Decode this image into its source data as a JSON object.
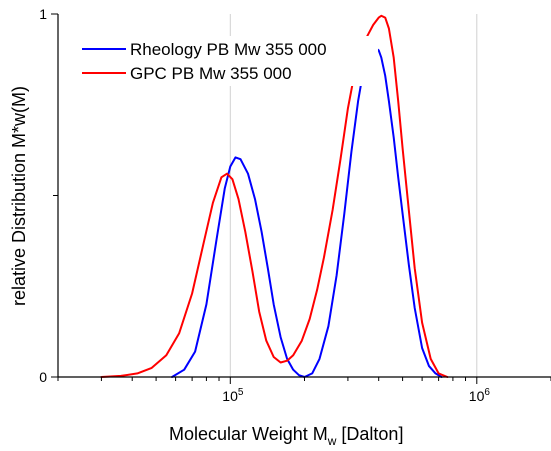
{
  "chart_data": {
    "type": "line",
    "xlabel": "Molecular Weight M",
    "xlabel_sub": "w",
    "xlabel_unit": " [Dalton]",
    "ylabel": "relative Distribution M*w(M)",
    "x_scale": "log",
    "xlim": [
      20000,
      2000000
    ],
    "ylim": [
      0,
      1
    ],
    "grid": "vertical",
    "legend_position": "top-left",
    "x_ticks": [
      {
        "value": 100000,
        "base": "10",
        "exp": "5"
      },
      {
        "value": 1000000,
        "base": "10",
        "exp": "6"
      }
    ],
    "y_ticks": [
      {
        "value": 0,
        "label": "0"
      },
      {
        "value": 1,
        "label": "1"
      }
    ],
    "series": [
      {
        "name": "Rheology PB Mw 355 000",
        "color": "#0000ff",
        "x": [
          58000,
          65000,
          72000,
          80000,
          88000,
          95000,
          100000,
          105000,
          110000,
          118000,
          126000,
          134000,
          142000,
          150000,
          160000,
          170000,
          180000,
          190000,
          200000,
          215000,
          230000,
          250000,
          270000,
          290000,
          310000,
          330000,
          350000,
          370000,
          390000,
          400000,
          410000,
          425000,
          440000,
          460000,
          480000,
          500000,
          530000,
          560000,
          600000,
          640000,
          680000,
          720000
        ],
        "y": [
          0.0,
          0.02,
          0.07,
          0.2,
          0.38,
          0.52,
          0.58,
          0.605,
          0.6,
          0.56,
          0.49,
          0.4,
          0.3,
          0.2,
          0.11,
          0.05,
          0.02,
          0.005,
          0.0,
          0.01,
          0.05,
          0.14,
          0.28,
          0.45,
          0.62,
          0.76,
          0.86,
          0.91,
          0.905,
          0.9,
          0.88,
          0.83,
          0.76,
          0.66,
          0.55,
          0.45,
          0.31,
          0.19,
          0.08,
          0.03,
          0.01,
          0.0
        ]
      },
      {
        "name": "GPC PB Mw 355 000",
        "color": "#ff0000",
        "x": [
          30000,
          36000,
          42000,
          48000,
          55000,
          62000,
          70000,
          78000,
          85000,
          92000,
          97000,
          102000,
          108000,
          115000,
          123000,
          131000,
          140000,
          150000,
          160000,
          170000,
          180000,
          195000,
          210000,
          225000,
          240000,
          260000,
          280000,
          300000,
          320000,
          340000,
          360000,
          380000,
          400000,
          410000,
          425000,
          440000,
          460000,
          480000,
          500000,
          530000,
          560000,
          600000,
          650000,
          700000,
          760000
        ],
        "y": [
          0.0,
          0.003,
          0.01,
          0.025,
          0.06,
          0.12,
          0.23,
          0.37,
          0.48,
          0.55,
          0.56,
          0.545,
          0.49,
          0.4,
          0.29,
          0.18,
          0.1,
          0.055,
          0.04,
          0.045,
          0.06,
          0.1,
          0.16,
          0.24,
          0.33,
          0.46,
          0.6,
          0.74,
          0.84,
          0.9,
          0.94,
          0.97,
          0.99,
          0.995,
          0.99,
          0.96,
          0.88,
          0.76,
          0.63,
          0.46,
          0.3,
          0.15,
          0.05,
          0.01,
          0.0
        ]
      }
    ]
  }
}
